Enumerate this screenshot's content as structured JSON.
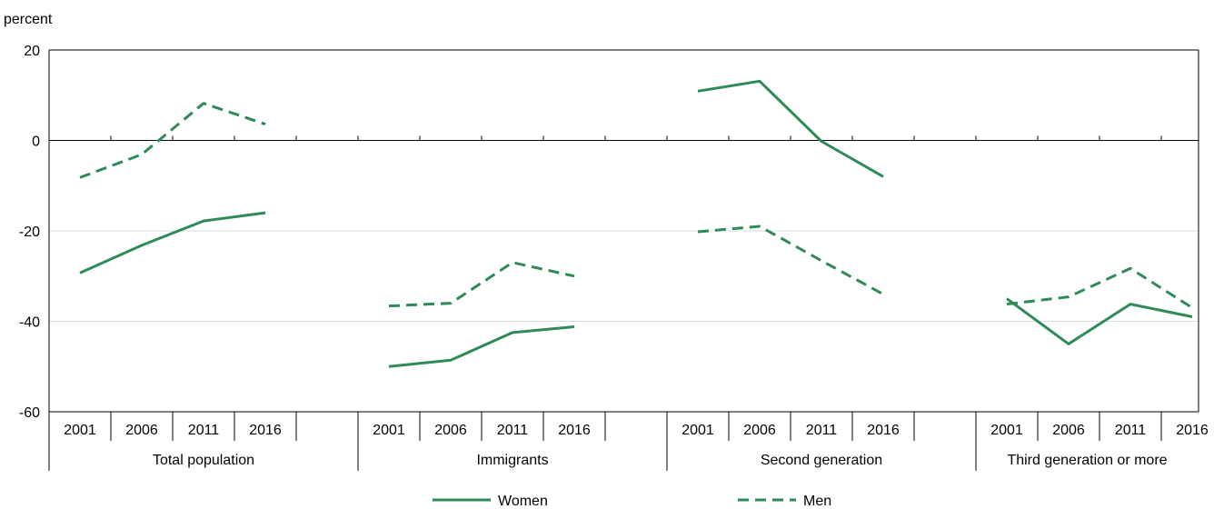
{
  "chart_data": {
    "type": "line",
    "ylabel": "percent",
    "ylim": [
      -60,
      20
    ],
    "yticks": [
      20,
      0,
      -20,
      -40,
      -60
    ],
    "groups": [
      {
        "name": "Total population",
        "years": [
          "2001",
          "2006",
          "2011",
          "2016"
        ],
        "series": {
          "Women": [
            -29.3,
            -23.2,
            -17.8,
            -16.0
          ],
          "Men": [
            -8.2,
            -3.1,
            8.2,
            3.6
          ]
        }
      },
      {
        "name": "Immigrants",
        "years": [
          "2001",
          "2006",
          "2011",
          "2016"
        ],
        "series": {
          "Women": [
            -50.0,
            -48.6,
            -42.5,
            -41.2
          ],
          "Men": [
            -36.6,
            -36.0,
            -27.0,
            -30.0
          ]
        }
      },
      {
        "name": "Second generation",
        "years": [
          "2001",
          "2006",
          "2011",
          "2016"
        ],
        "series": {
          "Women": [
            10.9,
            13.1,
            -0.2,
            -8.0
          ],
          "Men": [
            -20.2,
            -19.0,
            -26.6,
            -34.0
          ]
        }
      },
      {
        "name": "Third generation or more",
        "years": [
          "2001",
          "2006",
          "2011",
          "2016"
        ],
        "series": {
          "Women": [
            -35.0,
            -45.0,
            -36.2,
            -39.0
          ],
          "Men": [
            -36.2,
            -34.6,
            -28.3,
            -37.0
          ]
        }
      }
    ],
    "series_styles": [
      {
        "name": "Women",
        "dash": "solid",
        "color": "#2e8a57"
      },
      {
        "name": "Men",
        "dash": "dashed",
        "color": "#2e8a57"
      }
    ],
    "legend_position": "bottom",
    "grid": "horizontal"
  }
}
